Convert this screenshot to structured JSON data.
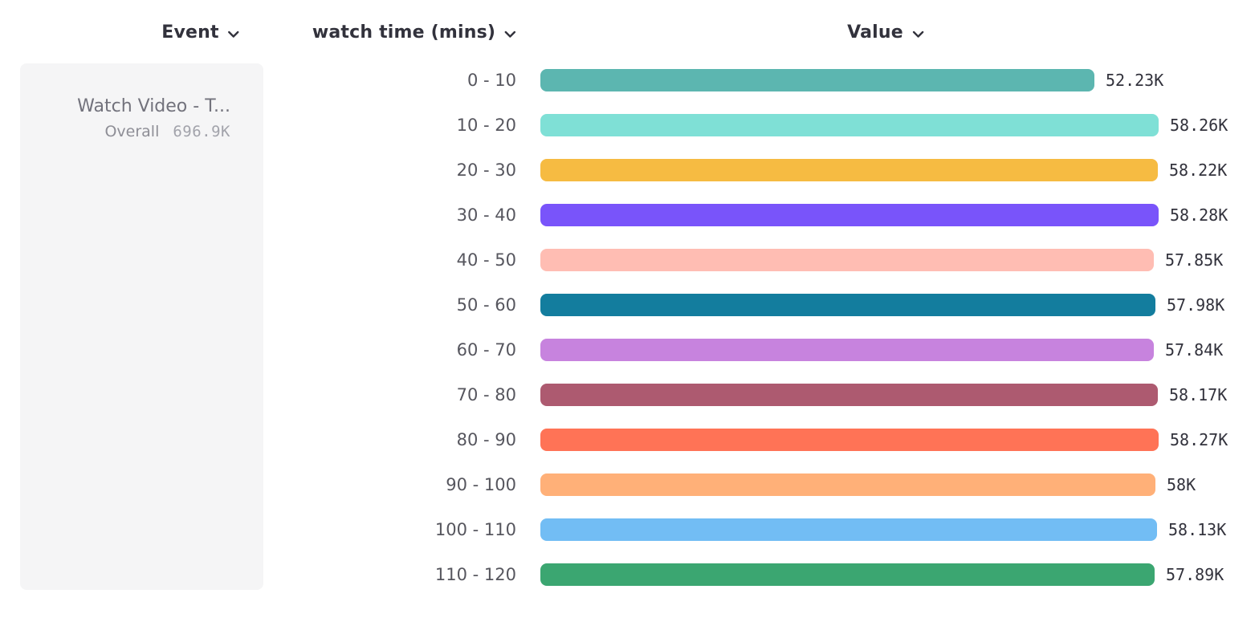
{
  "headers": [
    {
      "label": "Event"
    },
    {
      "label": "watch time (mins)"
    },
    {
      "label": "Value"
    }
  ],
  "legend": {
    "event_name": "Watch Video - T...",
    "overall_label": "Overall",
    "overall_value": "696.9K"
  },
  "icons": {
    "header_dropdown": "chevron-down-icon"
  },
  "chart_data": {
    "type": "bar",
    "orientation": "horizontal",
    "title": "",
    "category_axis_label": "watch time (mins)",
    "value_axis_label": "Value",
    "grid": false,
    "legend_position": "left",
    "xlim": [
      0,
      58280
    ],
    "categories": [
      "0 - 10",
      "10 - 20",
      "20 - 30",
      "30 - 40",
      "40 - 50",
      "50 - 60",
      "60 - 70",
      "70 - 80",
      "80 - 90",
      "90 - 100",
      "100 - 110",
      "110 - 120"
    ],
    "values": [
      52230,
      58260,
      58220,
      58280,
      57850,
      57980,
      57840,
      58170,
      58270,
      58000,
      58130,
      57890
    ],
    "value_labels": [
      "52.23K",
      "58.26K",
      "58.22K",
      "58.28K",
      "57.85K",
      "57.98K",
      "57.84K",
      "58.17K",
      "58.27K",
      "58K",
      "58.13K",
      "57.89K"
    ],
    "bar_colors": [
      "#5cb6b0",
      "#7fe0d6",
      "#f6bb42",
      "#7954fa",
      "#ffbdb3",
      "#137d9e",
      "#c783de",
      "#ad5a70",
      "#ff7356",
      "#ffb078",
      "#72bdf4",
      "#3ba671"
    ]
  }
}
